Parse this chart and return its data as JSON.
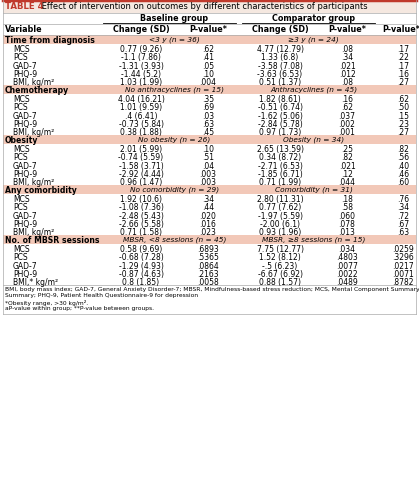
{
  "title_bold": "TABLE 4",
  "title_rest": " Effect of intervention on outcomes by different characteristics of participants",
  "header_group1": "Baseline group",
  "header_group2": "Comparator group",
  "col_headers": [
    "Variable",
    "Change (SD)",
    "P-value*",
    "Change (SD)",
    "P-value*",
    "P-value**"
  ],
  "sections": [
    {
      "label": "Time from diagnosis",
      "sub1": "<3 y (n = 36)",
      "sub2": "≥3 y (n = 24)",
      "rows": [
        [
          "MCS",
          "0.77 (9.26)",
          ".62",
          "4.77 (12.79)",
          ".08",
          ".17"
        ],
        [
          "PCS",
          "-1.1 (7.86)",
          ".41",
          "1.33 (6.8)",
          ".34",
          ".22"
        ],
        [
          "GAD-7",
          "-1.31 (3.93)",
          ".05",
          "-3.58 (7.08)",
          ".021",
          ".17"
        ],
        [
          "PHQ-9",
          "-1.44 (5.2)",
          ".10",
          "-3.63 (6.53)",
          ".012",
          ".16"
        ],
        [
          "BMI, kg/m²",
          "1.03 (1.99)",
          ".004",
          "0.51 (1.37)",
          ".08",
          ".27"
        ]
      ]
    },
    {
      "label": "Chemotherapy",
      "sub1": "No anthracyclines (n = 15)",
      "sub2": "Anthracyclines (n = 45)",
      "rows": [
        [
          "MCS",
          "4.04 (16.21)",
          ".35",
          "1.82 (8.61)",
          ".16",
          ".62"
        ],
        [
          "PCS",
          "1.01 (9.59)",
          ".69",
          "-0.51 (6.74)",
          ".62",
          ".50"
        ],
        [
          "GAD-7",
          ".4 (6.41)",
          ".03",
          "-1.62 (5.06)",
          ".037",
          ".15"
        ],
        [
          "PHQ-9",
          "-0.73 (5.84)",
          ".63",
          "-2.84 (5.78)",
          ".002",
          ".23"
        ],
        [
          "BMI, kg/m²",
          "0.38 (1.88)",
          ".45",
          "0.97 (1.73)",
          ".001",
          ".27"
        ]
      ]
    },
    {
      "label": "Obesity",
      "sub1": "No obesity (n = 26)",
      "sub2": "Obesity (n = 34)",
      "rows": [
        [
          "MCS",
          "2.01 (5.99)",
          ".10",
          "2.65 (13.59)",
          ".25",
          ".82"
        ],
        [
          "PCS",
          "-0.74 (5.59)",
          ".51",
          "0.34 (8.72)",
          ".82",
          ".56"
        ],
        [
          "GAD-7",
          "-1.58 (3.71)",
          ".04",
          "-2.71 (6.53)",
          ".021",
          ".40"
        ],
        [
          "PHQ-9",
          "-2.92 (4.44)",
          ".003",
          "-1.85 (6.71)",
          ".12",
          ".46"
        ],
        [
          "BMI, kg/m²",
          "0.96 (1.47)",
          ".003",
          "0.71 (1.99)",
          ".044",
          ".60"
        ]
      ]
    },
    {
      "label": "Any comorbidity",
      "sub1": "No comorbidity (n = 29)",
      "sub2": "Comorbidity (n = 31)",
      "rows": [
        [
          "MCS",
          "1.92 (10.6)",
          ".34",
          "2.80 (11.31)",
          ".18",
          ".76"
        ],
        [
          "PCS",
          "-1.08 (7.36)",
          ".44",
          "0.77 (7.62)",
          ".58",
          ".34"
        ],
        [
          "GAD-7",
          "-2.48 (5.43)",
          ".020",
          "-1.97 (5.59)",
          ".060",
          ".72"
        ],
        [
          "PHQ-9",
          "-2.66 (5.58)",
          ".016",
          "-2.00 (6.1)",
          ".078",
          ".67"
        ],
        [
          "BMI, kg/m²",
          "0.71 (1.58)",
          ".023",
          "0.93 (1.96)",
          ".013",
          ".63"
        ]
      ]
    },
    {
      "label": "No. of MBSR sessions",
      "sub1": "MBSR, <8 sessions (n = 45)",
      "sub2": "MBSR, ≥8 sessions (n = 15)",
      "rows": [
        [
          "MCS",
          "0.58 (9.69)",
          ".6893",
          "7.75 (12.77)",
          ".034",
          ".0259"
        ],
        [
          "PCS",
          "-0.68 (7.28)",
          ".5365",
          "1.52 (8.12)",
          ".4803",
          ".3296"
        ],
        [
          "GAD-7",
          "-1.29 (4.93)",
          ".0864",
          "-.5 (6.23)",
          ".0077",
          ".0217"
        ],
        [
          "PHQ-9",
          "-0.87 (4.63)",
          ".2163",
          "-6.67 (6.92)",
          ".0022",
          ".0071"
        ],
        [
          "BMI,* kg/m²",
          "0.8 (1.85)",
          ".0058",
          "0.88 (1.57)",
          ".0489",
          ".8782"
        ]
      ]
    }
  ],
  "footnotes": [
    "BMI, body mass index; GAD-7, General Anxiety Disorder-7; MBSR, Mindfulness-based stress reduction; MCS, Mental Component Summary; PCS, Physical Component",
    "Summary; PHQ-9, Patient Health Questionnaire-9 for depression",
    "*Obesity range, >30 kg/m².",
    "aP-value within group; **P-value between groups."
  ],
  "section_bg": "#f2c8b8",
  "title_bar_color": "#d44000"
}
